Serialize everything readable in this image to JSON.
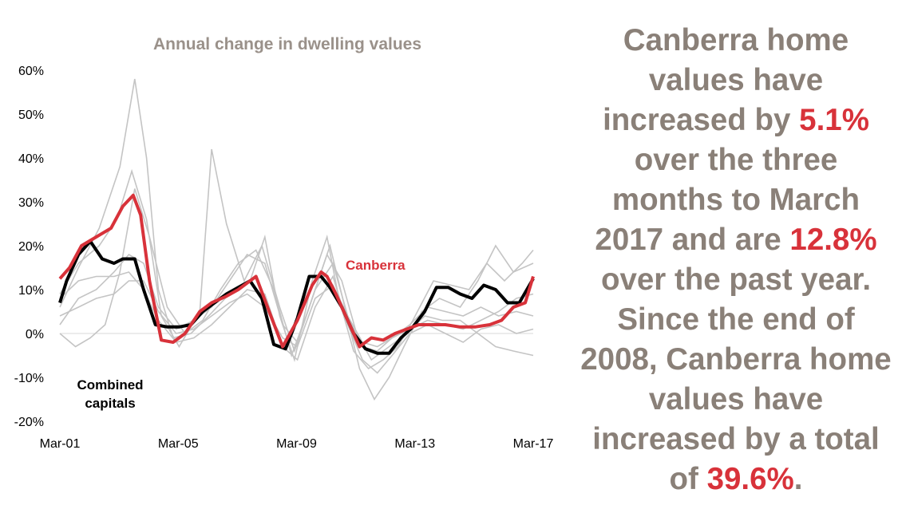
{
  "chart_data": {
    "type": "line",
    "title": "Annual change in dwelling values",
    "xlabel": "",
    "ylabel": "",
    "ylim": [
      -20,
      60
    ],
    "y_ticks": [
      "60%",
      "50%",
      "40%",
      "30%",
      "20%",
      "10%",
      "0%",
      "-10%",
      "-20%"
    ],
    "x_ticks": [
      "Mar-01",
      "Mar-05",
      "Mar-09",
      "Mar-13",
      "Mar-17"
    ],
    "x_range": [
      "2001-03",
      "2017-03"
    ],
    "annotations": [
      "Canberra",
      "Combined capitals"
    ],
    "colors": {
      "canberra": "#d8323a",
      "combined": "#000000",
      "others": "#c4c4c4",
      "title": "#9a918a"
    },
    "series": [
      {
        "name": "Canberra",
        "x": [
          2001.17,
          2001.5,
          2001.9,
          2002.4,
          2002.9,
          2003.3,
          2003.65,
          2003.9,
          2004.2,
          2004.6,
          2005.0,
          2005.4,
          2005.9,
          2006.3,
          2006.8,
          2007.2,
          2007.8,
          2008.3,
          2008.7,
          2009.2,
          2009.7,
          2010.0,
          2010.2,
          2010.5,
          2010.9,
          2011.3,
          2011.7,
          2012.1,
          2012.5,
          2012.9,
          2013.3,
          2013.7,
          2014.2,
          2014.7,
          2015.2,
          2015.7,
          2016.1,
          2016.5,
          2016.9,
          2017.17
        ],
        "values": [
          12.5,
          15,
          20,
          22,
          24,
          29,
          31.5,
          27,
          12,
          -1.5,
          -2,
          0,
          5,
          7,
          8.5,
          10,
          13,
          4,
          -3,
          3,
          11,
          14,
          13,
          9,
          3,
          -3,
          -1,
          -1.5,
          0,
          1,
          2,
          2,
          2,
          1.5,
          1.5,
          2,
          3,
          6,
          7,
          13
        ]
      },
      {
        "name": "Combined capitals",
        "x": [
          2001.17,
          2001.4,
          2001.8,
          2002.2,
          2002.6,
          2003.0,
          2003.3,
          2003.7,
          2004.0,
          2004.4,
          2004.8,
          2005.2,
          2005.6,
          2006.0,
          2006.4,
          2006.8,
          2007.2,
          2007.6,
          2008.0,
          2008.4,
          2008.8,
          2009.2,
          2009.6,
          2010.0,
          2010.3,
          2010.7,
          2011.1,
          2011.5,
          2011.9,
          2012.3,
          2012.7,
          2013.1,
          2013.5,
          2013.9,
          2014.3,
          2014.7,
          2015.1,
          2015.5,
          2015.9,
          2016.3,
          2016.7,
          2017.17
        ],
        "values": [
          7,
          12,
          18,
          21,
          17,
          16,
          17,
          17,
          10,
          2,
          1.5,
          1.5,
          2,
          5,
          7,
          9,
          10.5,
          12,
          8,
          -2.5,
          -3.5,
          3.5,
          13,
          13,
          10.5,
          6,
          0,
          -3.5,
          -4.5,
          -4.5,
          -1,
          1.5,
          5,
          10.5,
          10.5,
          9,
          8,
          11,
          10,
          7,
          7,
          12.5
        ]
      }
    ]
  },
  "headline": {
    "t1": "Canberra home values have increased by ",
    "h1": "5.1%",
    "t2": " over the three months to March 2017 and are ",
    "h2": "12.8%",
    "t3": " over the past year. Since the end of 2008, Canberra home values have increased by a total of ",
    "h3": "39.6%",
    "t4": "."
  }
}
